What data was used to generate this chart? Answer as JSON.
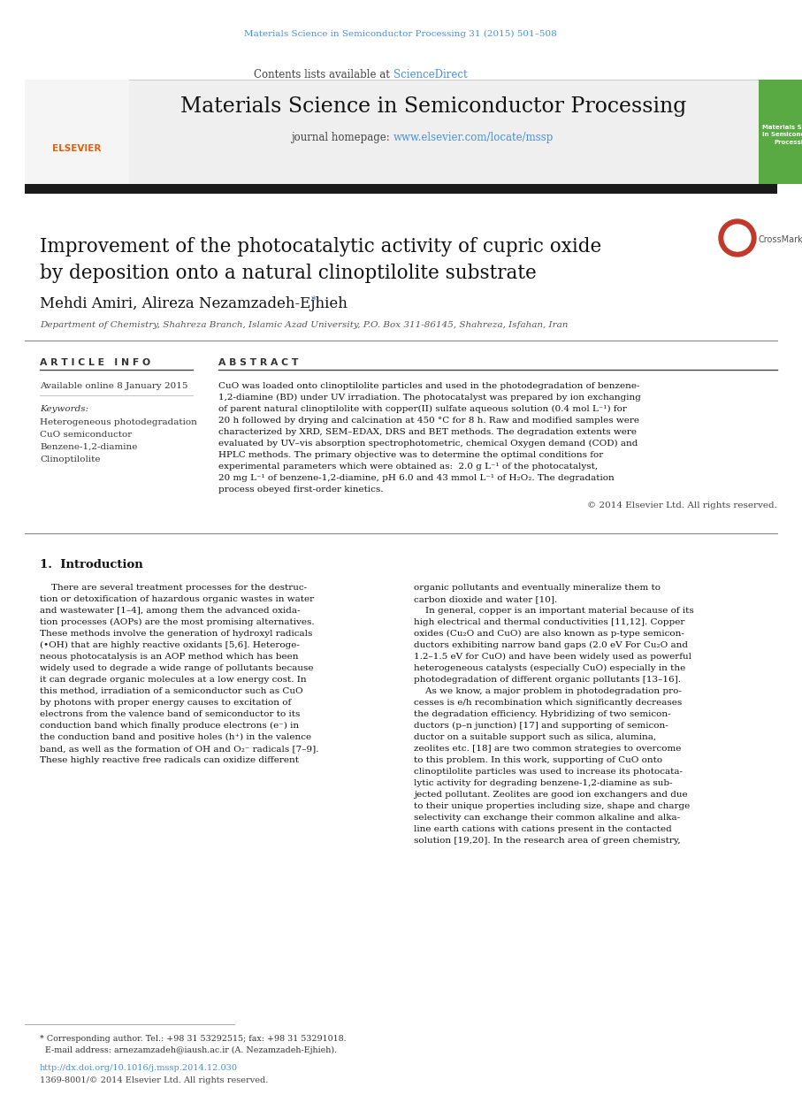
{
  "journal_ref_color": "#4a90d9",
  "journal_ref_text": "Materials Science in Semiconductor Processing 31 (2015) 501–508",
  "header_sciencedirect_color": "#4a90d9",
  "journal_title": "Materials Science in Semiconductor Processing",
  "journal_homepage_url": "www.elsevier.com/locate/mssp",
  "journal_homepage_url_color": "#4a90d9",
  "paper_title_line1": "Improvement of the photocatalytic activity of cupric oxide",
  "paper_title_line2": "by deposition onto a natural clinoptilolite substrate",
  "authors": "Mehdi Amiri, Alireza Nezamzadeh-Ejhieh",
  "affiliation": "Department of Chemistry, Shahreza Branch, Islamic Azad University, P.O. Box 311-86145, Shahreza, Isfahan, Iran",
  "article_info_header": "A R T I C L E   I N F O",
  "available_online": "Available online 8 January 2015",
  "keywords_label": "Keywords:",
  "keywords": [
    "Heterogeneous photodegradation",
    "CuO semiconductor",
    "Benzene-1,2-diamine",
    "Clinoptilolite"
  ],
  "abstract_header": "A B S T R A C T",
  "copyright_text": "© 2014 Elsevier Ltd. All rights reserved.",
  "footnote_text1": "* Corresponding author. Tel.: +98 31 53292515; fax: +98 31 53291018.",
  "footnote_text2": "  E-mail address: arnezamzadeh@iaush.ac.ir (A. Nezamzadeh-Ejhieh).",
  "doi_text": "http://dx.doi.org/10.1016/j.mssp.2014.12.030",
  "issn_text": "1369-8001/© 2014 Elsevier Ltd. All rights reserved.",
  "bg_color": "#ffffff",
  "light_gray_bg": "#efefef",
  "abstract_lines": [
    "CuO was loaded onto clinoptilolite particles and used in the photodegradation of benzene-",
    "1,2-diamine (BD) under UV irradiation. The photocatalyst was prepared by ion exchanging",
    "of parent natural clinoptilolite with copper(II) sulfate aqueous solution (0.4 mol L⁻¹) for",
    "20 h followed by drying and calcination at 450 °C for 8 h. Raw and modified samples were",
    "characterized by XRD, SEM–EDAX, DRS and BET methods. The degradation extents were",
    "evaluated by UV–vis absorption spectrophotometric, chemical Oxygen demand (COD) and",
    "HPLC methods. The primary objective was to determine the optimal conditions for",
    "experimental parameters which were obtained as:  2.0 g L⁻¹ of the photocatalyst,",
    "20 mg L⁻¹ of benzene-1,2-diamine, pH 6.0 and 43 mmol L⁻¹ of H₂O₂. The degradation",
    "process obeyed first-order kinetics."
  ],
  "intro_col1_lines": [
    "    There are several treatment processes for the destruc-",
    "tion or detoxification of hazardous organic wastes in water",
    "and wastewater [1–4], among them the advanced oxida-",
    "tion processes (AOPs) are the most promising alternatives.",
    "These methods involve the generation of hydroxyl radicals",
    "(•OH) that are highly reactive oxidants [5,6]. Heteroge-",
    "neous photocatalysis is an AOP method which has been",
    "widely used to degrade a wide range of pollutants because",
    "it can degrade organic molecules at a low energy cost. In",
    "this method, irradiation of a semiconductor such as CuO",
    "by photons with proper energy causes to excitation of",
    "electrons from the valence band of semiconductor to its",
    "conduction band which finally produce electrons (e⁻) in",
    "the conduction band and positive holes (h⁺) in the valence",
    "band, as well as the formation of OH and O₂⁻ radicals [7–9].",
    "These highly reactive free radicals can oxidize different"
  ],
  "intro_col2_lines": [
    "organic pollutants and eventually mineralize them to",
    "carbon dioxide and water [10].",
    "    In general, copper is an important material because of its",
    "high electrical and thermal conductivities [11,12]. Copper",
    "oxides (Cu₂O and CuO) are also known as p-type semicon-",
    "ductors exhibiting narrow band gaps (2.0 eV For Cu₂O and",
    "1.2–1.5 eV for CuO) and have been widely used as powerful",
    "heterogeneous catalysts (especially CuO) especially in the",
    "photodegradation of different organic pollutants [13–16].",
    "    As we know, a major problem in photodegradation pro-",
    "cesses is e/h recombination which significantly decreases",
    "the degradation efficiency. Hybridizing of two semicon-",
    "ductors (p–n junction) [17] and supporting of semicon-",
    "ductor on a suitable support such as silica, alumina,",
    "zeolites etc. [18] are two common strategies to overcome",
    "to this problem. In this work, supporting of CuO onto",
    "clinoptilolite particles was used to increase its photocata-",
    "lytic activity for degrading benzene-1,2-diamine as sub-",
    "jected pollutant. Zeolites are good ion exchangers and due",
    "to their unique properties including size, shape and charge",
    "selectivity can exchange their common alkaline and alka-",
    "line earth cations with cations present in the contacted",
    "solution [19,20]. In the research area of green chemistry,"
  ]
}
